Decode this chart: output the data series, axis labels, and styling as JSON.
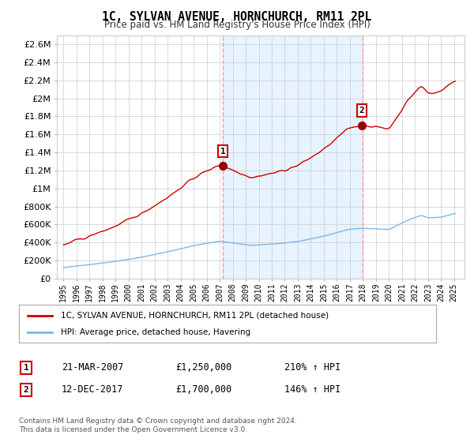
{
  "title": "1C, SYLVAN AVENUE, HORNCHURCH, RM11 2PL",
  "subtitle": "Price paid vs. HM Land Registry's House Price Index (HPI)",
  "background_color": "#ffffff",
  "grid_color": "#cccccc",
  "sale1_date": 2007.21,
  "sale1_price": 1250000,
  "sale2_date": 2017.95,
  "sale2_price": 1700000,
  "hpi_line_color": "#7ab8e8",
  "price_line_color": "#cc0000",
  "dashed_line_color": "#ff9999",
  "shade_color": "#ddeeff",
  "legend1_label": "1C, SYLVAN AVENUE, HORNCHURCH, RM11 2PL (detached house)",
  "legend2_label": "HPI: Average price, detached house, Havering",
  "footer": "Contains HM Land Registry data © Crown copyright and database right 2024.\nThis data is licensed under the Open Government Licence v3.0.",
  "ylim_max": 2700000,
  "ylim_min": 0,
  "xmin": 1994.5,
  "xmax": 2025.8
}
